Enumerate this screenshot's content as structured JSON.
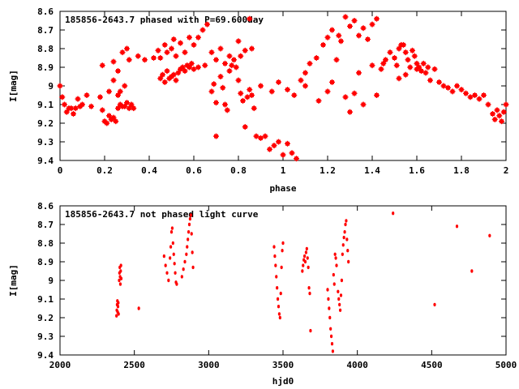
{
  "chart_data": [
    {
      "type": "scatter",
      "title": "185856-2643.7 phased with P=69.600day",
      "xlabel": "phase",
      "ylabel": "I[mag]",
      "xlim": [
        0,
        2
      ],
      "ylim": [
        9.4,
        8.6
      ],
      "y_inverted": true,
      "grid": false,
      "xticks": [
        "0",
        "0.2",
        "0.4",
        "0.6",
        "0.8",
        "1",
        "1.2",
        "1.4",
        "1.6",
        "1.8",
        "2"
      ],
      "yticks": [
        "8.6",
        "8.7",
        "8.8",
        "8.9",
        "9",
        "9.1",
        "9.2",
        "9.3",
        "9.4"
      ],
      "marker_color": "#ff0000",
      "points": [
        [
          0.0,
          9.0
        ],
        [
          0.01,
          9.06
        ],
        [
          0.02,
          9.1
        ],
        [
          0.03,
          9.14
        ],
        [
          0.04,
          9.12
        ],
        [
          0.05,
          9.12
        ],
        [
          0.06,
          9.15
        ],
        [
          0.07,
          9.12
        ],
        [
          0.08,
          9.07
        ],
        [
          0.09,
          9.11
        ],
        [
          0.1,
          9.1
        ],
        [
          0.12,
          9.05
        ],
        [
          0.14,
          9.11
        ],
        [
          0.18,
          9.06
        ],
        [
          0.19,
          9.13
        ],
        [
          0.2,
          9.19
        ],
        [
          0.21,
          9.2
        ],
        [
          0.22,
          9.16
        ],
        [
          0.23,
          9.18
        ],
        [
          0.24,
          9.17
        ],
        [
          0.25,
          9.19
        ],
        [
          0.26,
          9.12
        ],
        [
          0.27,
          9.1
        ],
        [
          0.28,
          9.11
        ],
        [
          0.29,
          9.11
        ],
        [
          0.3,
          9.09
        ],
        [
          0.31,
          9.12
        ],
        [
          0.32,
          9.1
        ],
        [
          0.33,
          9.12
        ],
        [
          0.22,
          9.03
        ],
        [
          0.24,
          8.97
        ],
        [
          0.26,
          9.05
        ],
        [
          0.27,
          9.03
        ],
        [
          0.29,
          9.0
        ],
        [
          0.19,
          8.89
        ],
        [
          0.24,
          8.87
        ],
        [
          0.26,
          8.92
        ],
        [
          0.28,
          8.82
        ],
        [
          0.3,
          8.8
        ],
        [
          0.31,
          8.86
        ],
        [
          0.35,
          8.84
        ],
        [
          0.38,
          8.86
        ],
        [
          0.42,
          8.85
        ],
        [
          0.44,
          8.81
        ],
        [
          0.45,
          8.96
        ],
        [
          0.46,
          8.94
        ],
        [
          0.47,
          8.98
        ],
        [
          0.48,
          8.92
        ],
        [
          0.49,
          8.96
        ],
        [
          0.5,
          8.95
        ],
        [
          0.51,
          8.94
        ],
        [
          0.52,
          8.97
        ],
        [
          0.53,
          8.93
        ],
        [
          0.54,
          8.91
        ],
        [
          0.55,
          8.9
        ],
        [
          0.56,
          8.92
        ],
        [
          0.57,
          8.89
        ],
        [
          0.58,
          8.9
        ],
        [
          0.59,
          8.88
        ],
        [
          0.6,
          8.91
        ],
        [
          0.62,
          8.9
        ],
        [
          0.65,
          8.89
        ],
        [
          0.45,
          8.85
        ],
        [
          0.47,
          8.78
        ],
        [
          0.48,
          8.82
        ],
        [
          0.5,
          8.8
        ],
        [
          0.51,
          8.75
        ],
        [
          0.52,
          8.84
        ],
        [
          0.54,
          8.77
        ],
        [
          0.56,
          8.82
        ],
        [
          0.58,
          8.74
        ],
        [
          0.6,
          8.78
        ],
        [
          0.62,
          8.74
        ],
        [
          0.64,
          8.7
        ],
        [
          0.66,
          8.67
        ],
        [
          0.68,
          9.03
        ],
        [
          0.69,
          8.99
        ],
        [
          0.7,
          9.09
        ],
        [
          0.7,
          9.27
        ],
        [
          0.72,
          8.95
        ],
        [
          0.73,
          9.01
        ],
        [
          0.74,
          9.1
        ],
        [
          0.75,
          9.13
        ],
        [
          0.76,
          8.92
        ],
        [
          0.77,
          8.89
        ],
        [
          0.78,
          8.86
        ],
        [
          0.8,
          8.97
        ],
        [
          0.81,
          9.04
        ],
        [
          0.82,
          9.08
        ],
        [
          0.83,
          9.22
        ],
        [
          0.84,
          9.06
        ],
        [
          0.85,
          9.02
        ],
        [
          0.86,
          9.05
        ],
        [
          0.87,
          9.12
        ],
        [
          0.68,
          8.82
        ],
        [
          0.7,
          8.86
        ],
        [
          0.72,
          8.8
        ],
        [
          0.74,
          8.88
        ],
        [
          0.76,
          8.84
        ],
        [
          0.79,
          8.9
        ],
        [
          0.8,
          8.76
        ],
        [
          0.81,
          8.84
        ],
        [
          0.83,
          8.81
        ],
        [
          0.85,
          8.64
        ],
        [
          0.86,
          8.8
        ],
        [
          0.88,
          9.27
        ],
        [
          0.9,
          9.28
        ],
        [
          0.92,
          9.27
        ],
        [
          0.94,
          9.34
        ],
        [
          0.96,
          9.32
        ],
        [
          0.98,
          9.3
        ],
        [
          1.0,
          9.37
        ],
        [
          1.02,
          9.31
        ],
        [
          1.04,
          9.36
        ],
        [
          1.06,
          9.39
        ],
        [
          0.9,
          9.0
        ],
        [
          0.95,
          9.03
        ],
        [
          0.98,
          8.98
        ],
        [
          1.02,
          9.02
        ],
        [
          1.05,
          9.05
        ],
        [
          1.1,
          9.0
        ],
        [
          1.08,
          8.97
        ],
        [
          1.1,
          8.93
        ],
        [
          1.12,
          8.88
        ],
        [
          1.15,
          8.85
        ],
        [
          1.18,
          8.78
        ],
        [
          1.2,
          8.74
        ],
        [
          1.22,
          8.7
        ],
        [
          1.25,
          8.73
        ],
        [
          1.28,
          8.63
        ],
        [
          1.3,
          8.68
        ],
        [
          1.32,
          8.65
        ],
        [
          1.34,
          8.73
        ],
        [
          1.36,
          8.69
        ],
        [
          1.38,
          8.75
        ],
        [
          1.4,
          8.67
        ],
        [
          1.42,
          8.64
        ],
        [
          1.16,
          9.08
        ],
        [
          1.2,
          9.03
        ],
        [
          1.22,
          8.98
        ],
        [
          1.24,
          8.86
        ],
        [
          1.26,
          8.76
        ],
        [
          1.28,
          9.06
        ],
        [
          1.3,
          9.14
        ],
        [
          1.32,
          9.04
        ],
        [
          1.34,
          8.93
        ],
        [
          1.36,
          9.1
        ],
        [
          1.4,
          8.89
        ],
        [
          1.42,
          9.05
        ],
        [
          1.44,
          8.91
        ],
        [
          1.45,
          8.88
        ],
        [
          1.46,
          8.86
        ],
        [
          1.48,
          8.82
        ],
        [
          1.5,
          8.85
        ],
        [
          1.51,
          8.89
        ],
        [
          1.52,
          8.8
        ],
        [
          1.53,
          8.78
        ],
        [
          1.54,
          8.78
        ],
        [
          1.55,
          8.82
        ],
        [
          1.56,
          8.86
        ],
        [
          1.57,
          8.9
        ],
        [
          1.58,
          8.81
        ],
        [
          1.59,
          8.84
        ],
        [
          1.6,
          8.88
        ],
        [
          1.61,
          8.9
        ],
        [
          1.62,
          8.92
        ],
        [
          1.63,
          8.88
        ],
        [
          1.64,
          8.93
        ],
        [
          1.65,
          8.9
        ],
        [
          1.52,
          8.96
        ],
        [
          1.55,
          8.94
        ],
        [
          1.6,
          8.91
        ],
        [
          1.66,
          8.97
        ],
        [
          1.68,
          8.91
        ],
        [
          1.7,
          8.98
        ],
        [
          1.72,
          9.0
        ],
        [
          1.74,
          9.01
        ],
        [
          1.76,
          9.03
        ],
        [
          1.78,
          9.0
        ],
        [
          1.8,
          9.02
        ],
        [
          1.82,
          9.04
        ],
        [
          1.84,
          9.06
        ],
        [
          1.86,
          9.05
        ],
        [
          1.88,
          9.07
        ],
        [
          1.9,
          9.05
        ],
        [
          1.92,
          9.1
        ],
        [
          1.94,
          9.15
        ],
        [
          1.95,
          9.18
        ],
        [
          1.96,
          9.13
        ],
        [
          1.97,
          9.16
        ],
        [
          1.98,
          9.19
        ],
        [
          1.99,
          9.14
        ],
        [
          2.0,
          9.1
        ]
      ]
    },
    {
      "type": "scatter",
      "title": "185856-2643.7 not phased light curve",
      "xlabel": "hjd0",
      "ylabel": "I[mag]",
      "xlim": [
        2000,
        5000
      ],
      "ylim": [
        9.4,
        8.6
      ],
      "y_inverted": true,
      "grid": false,
      "xticks": [
        "2000",
        "2500",
        "3000",
        "3500",
        "4000",
        "4500",
        "5000"
      ],
      "yticks": [
        "8.6",
        "8.7",
        "8.8",
        "8.9",
        "9",
        "9.1",
        "9.2",
        "9.3",
        "9.4"
      ],
      "marker_color": "#ff0000",
      "points": [
        [
          2380,
          9.19
        ],
        [
          2382,
          9.16
        ],
        [
          2384,
          9.13
        ],
        [
          2386,
          9.11
        ],
        [
          2388,
          9.17
        ],
        [
          2390,
          9.14
        ],
        [
          2392,
          9.12
        ],
        [
          2394,
          9.18
        ],
        [
          2398,
          9.0
        ],
        [
          2400,
          8.96
        ],
        [
          2402,
          8.93
        ],
        [
          2404,
          8.98
        ],
        [
          2406,
          9.02
        ],
        [
          2408,
          8.95
        ],
        [
          2410,
          8.92
        ],
        [
          2412,
          8.99
        ],
        [
          2530,
          9.15
        ],
        [
          2700,
          8.87
        ],
        [
          2710,
          8.92
        ],
        [
          2720,
          8.96
        ],
        [
          2730,
          9.0
        ],
        [
          2740,
          8.88
        ],
        [
          2745,
          8.82
        ],
        [
          2750,
          8.74
        ],
        [
          2755,
          8.72
        ],
        [
          2760,
          8.8
        ],
        [
          2765,
          8.86
        ],
        [
          2770,
          8.91
        ],
        [
          2775,
          8.96
        ],
        [
          2780,
          9.01
        ],
        [
          2785,
          9.02
        ],
        [
          2820,
          8.98
        ],
        [
          2830,
          8.94
        ],
        [
          2840,
          8.9
        ],
        [
          2850,
          8.86
        ],
        [
          2855,
          8.82
        ],
        [
          2860,
          8.78
        ],
        [
          2865,
          8.74
        ],
        [
          2870,
          8.7
        ],
        [
          2875,
          8.67
        ],
        [
          2880,
          8.65
        ],
        [
          2885,
          8.75
        ],
        [
          2890,
          8.85
        ],
        [
          2895,
          8.93
        ],
        [
          3440,
          8.82
        ],
        [
          3445,
          8.87
        ],
        [
          3450,
          8.92
        ],
        [
          3455,
          8.98
        ],
        [
          3460,
          9.04
        ],
        [
          3465,
          9.1
        ],
        [
          3470,
          9.14
        ],
        [
          3475,
          9.18
        ],
        [
          3480,
          9.2
        ],
        [
          3485,
          9.07
        ],
        [
          3490,
          8.93
        ],
        [
          3495,
          8.84
        ],
        [
          3500,
          8.8
        ],
        [
          3630,
          8.95
        ],
        [
          3635,
          8.92
        ],
        [
          3640,
          8.89
        ],
        [
          3645,
          8.87
        ],
        [
          3650,
          8.9
        ],
        [
          3655,
          8.85
        ],
        [
          3660,
          8.83
        ],
        [
          3665,
          8.88
        ],
        [
          3670,
          8.93
        ],
        [
          3675,
          9.04
        ],
        [
          3680,
          9.07
        ],
        [
          3685,
          9.27
        ],
        [
          3800,
          9.05
        ],
        [
          3805,
          9.1
        ],
        [
          3810,
          9.15
        ],
        [
          3815,
          9.2
        ],
        [
          3820,
          9.26
        ],
        [
          3825,
          9.3
        ],
        [
          3830,
          9.34
        ],
        [
          3835,
          9.38
        ],
        [
          3840,
          8.97
        ],
        [
          3845,
          9.02
        ],
        [
          3850,
          8.86
        ],
        [
          3855,
          8.88
        ],
        [
          3860,
          8.92
        ],
        [
          3870,
          9.06
        ],
        [
          3875,
          9.1
        ],
        [
          3880,
          9.13
        ],
        [
          3885,
          9.16
        ],
        [
          3890,
          9.08
        ],
        [
          3895,
          9.0
        ],
        [
          3900,
          8.86
        ],
        [
          3905,
          8.81
        ],
        [
          3910,
          8.77
        ],
        [
          3915,
          8.74
        ],
        [
          3920,
          8.7
        ],
        [
          3925,
          8.68
        ],
        [
          3930,
          8.78
        ],
        [
          3935,
          8.84
        ],
        [
          3940,
          8.9
        ],
        [
          4240,
          8.64
        ],
        [
          4520,
          9.13
        ],
        [
          4670,
          8.71
        ],
        [
          4770,
          8.95
        ],
        [
          4890,
          8.76
        ]
      ]
    }
  ]
}
